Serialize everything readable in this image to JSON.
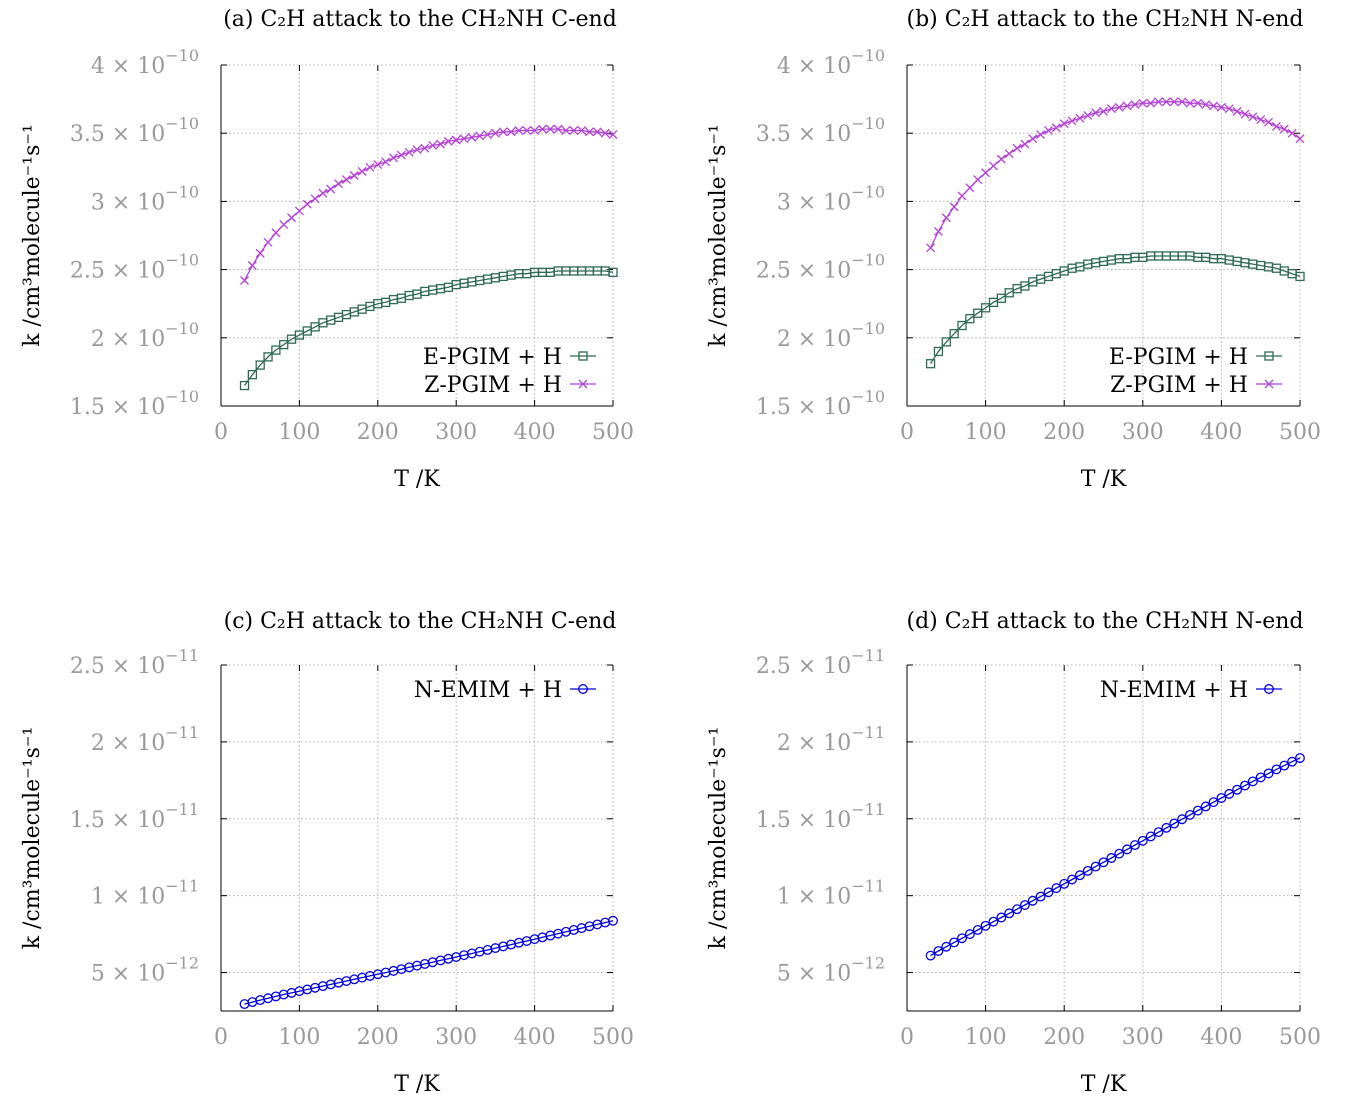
{
  "panels": [
    {
      "title": "(a) C₂H attack to the CH₂NH C-end",
      "xlabel": "T /K",
      "ylabel": "k /cm³molecule⁻¹s⁻¹",
      "xticks": [
        "0",
        "100",
        "200",
        "300",
        "400",
        "500"
      ],
      "yticks": [
        {
          "value": 1.5e-10,
          "mant": "1.5 × 10",
          "exp": "−10"
        },
        {
          "value": 2e-10,
          "mant": "2 × 10",
          "exp": "−10"
        },
        {
          "value": 2.5e-10,
          "mant": "2.5 × 10",
          "exp": "−10"
        },
        {
          "value": 3e-10,
          "mant": "3 × 10",
          "exp": "−10"
        },
        {
          "value": 3.5e-10,
          "mant": "3.5 × 10",
          "exp": "−10"
        },
        {
          "value": 4e-10,
          "mant": "4 × 10",
          "exp": "−10"
        }
      ]
    },
    {
      "title": "(b) C₂H attack to the CH₂NH N-end",
      "xlabel": "T /K",
      "ylabel": "k /cm³molecule⁻¹s⁻¹",
      "xticks": [
        "0",
        "100",
        "200",
        "300",
        "400",
        "500"
      ],
      "yticks": [
        {
          "value": 1.5e-10,
          "mant": "1.5 × 10",
          "exp": "−10"
        },
        {
          "value": 2e-10,
          "mant": "2 × 10",
          "exp": "−10"
        },
        {
          "value": 2.5e-10,
          "mant": "2.5 × 10",
          "exp": "−10"
        },
        {
          "value": 3e-10,
          "mant": "3 × 10",
          "exp": "−10"
        },
        {
          "value": 3.5e-10,
          "mant": "3.5 × 10",
          "exp": "−10"
        },
        {
          "value": 4e-10,
          "mant": "4 × 10",
          "exp": "−10"
        }
      ]
    },
    {
      "title": "(c) C₂H attack to the CH₂NH C-end",
      "xlabel": "T /K",
      "ylabel": "k /cm³molecule⁻¹s⁻¹",
      "xticks": [
        "0",
        "100",
        "200",
        "300",
        "400",
        "500"
      ],
      "yticks": [
        {
          "value": 5e-12,
          "mant": "5 × 10",
          "exp": "−12"
        },
        {
          "value": 1e-11,
          "mant": "1 × 10",
          "exp": "−11"
        },
        {
          "value": 1.5e-11,
          "mant": "1.5 × 10",
          "exp": "−11"
        },
        {
          "value": 2e-11,
          "mant": "2 × 10",
          "exp": "−11"
        },
        {
          "value": 2.5e-11,
          "mant": "2.5 × 10",
          "exp": "−11"
        }
      ]
    },
    {
      "title": "(d) C₂H attack to the CH₂NH N-end",
      "xlabel": "T /K",
      "ylabel": "k /cm³molecule⁻¹s⁻¹",
      "xticks": [
        "0",
        "100",
        "200",
        "300",
        "400",
        "500"
      ],
      "yticks": [
        {
          "value": 5e-12,
          "mant": "5 × 10",
          "exp": "−12"
        },
        {
          "value": 1e-11,
          "mant": "1 × 10",
          "exp": "−11"
        },
        {
          "value": 1.5e-11,
          "mant": "1.5 × 10",
          "exp": "−11"
        },
        {
          "value": 2e-11,
          "mant": "2 × 10",
          "exp": "−11"
        },
        {
          "value": 2.5e-11,
          "mant": "2.5 × 10",
          "exp": "−11"
        }
      ]
    }
  ],
  "colors": {
    "E": "#2e6b52",
    "Z": "#b341d6",
    "N": "#0000e0",
    "grid": "#b0b0b0",
    "tick": "#999999"
  },
  "chart_data": [
    {
      "type": "line",
      "title": "(a) C₂H attack to the CH₂NH C-end",
      "xlabel": "T /K",
      "ylabel": "k /cm³molecule⁻¹s⁻¹",
      "xlim": [
        0,
        500
      ],
      "ylim": [
        1.5e-10,
        4e-10
      ],
      "grid": true,
      "legend": "bottom-right",
      "x": [
        30,
        40,
        50,
        60,
        70,
        80,
        90,
        100,
        110,
        120,
        130,
        140,
        150,
        160,
        170,
        180,
        190,
        200,
        210,
        220,
        230,
        240,
        250,
        260,
        270,
        280,
        290,
        300,
        310,
        320,
        330,
        340,
        350,
        360,
        370,
        380,
        390,
        400,
        410,
        420,
        430,
        440,
        450,
        460,
        470,
        480,
        490,
        500
      ],
      "series": [
        {
          "name": "E-PGIM + H",
          "marker": "square",
          "values": [
            1.65e-10,
            1.73e-10,
            1.8e-10,
            1.86e-10,
            1.91e-10,
            1.95e-10,
            1.99e-10,
            2.02e-10,
            2.05e-10,
            2.08e-10,
            2.11e-10,
            2.13e-10,
            2.15e-10,
            2.17e-10,
            2.19e-10,
            2.21e-10,
            2.23e-10,
            2.25e-10,
            2.26e-10,
            2.28e-10,
            2.29e-10,
            2.31e-10,
            2.32e-10,
            2.34e-10,
            2.35e-10,
            2.36e-10,
            2.37e-10,
            2.39e-10,
            2.4e-10,
            2.41e-10,
            2.42e-10,
            2.43e-10,
            2.44e-10,
            2.45e-10,
            2.46e-10,
            2.47e-10,
            2.47e-10,
            2.48e-10,
            2.48e-10,
            2.48e-10,
            2.49e-10,
            2.49e-10,
            2.49e-10,
            2.49e-10,
            2.49e-10,
            2.49e-10,
            2.49e-10,
            2.48e-10
          ]
        },
        {
          "name": "Z-PGIM + H",
          "marker": "x",
          "values": [
            2.42e-10,
            2.53e-10,
            2.62e-10,
            2.7e-10,
            2.77e-10,
            2.83e-10,
            2.88e-10,
            2.93e-10,
            2.98e-10,
            3.02e-10,
            3.06e-10,
            3.09e-10,
            3.13e-10,
            3.16e-10,
            3.19e-10,
            3.22e-10,
            3.25e-10,
            3.27e-10,
            3.29e-10,
            3.32e-10,
            3.34e-10,
            3.36e-10,
            3.38e-10,
            3.39e-10,
            3.41e-10,
            3.42e-10,
            3.44e-10,
            3.45e-10,
            3.46e-10,
            3.47e-10,
            3.48e-10,
            3.49e-10,
            3.5e-10,
            3.51e-10,
            3.51e-10,
            3.52e-10,
            3.52e-10,
            3.52e-10,
            3.53e-10,
            3.53e-10,
            3.53e-10,
            3.52e-10,
            3.52e-10,
            3.52e-10,
            3.51e-10,
            3.51e-10,
            3.5e-10,
            3.49e-10
          ]
        }
      ]
    },
    {
      "type": "line",
      "title": "(b) C₂H attack to the CH₂NH N-end",
      "xlabel": "T /K",
      "ylabel": "k /cm³molecule⁻¹s⁻¹",
      "xlim": [
        0,
        500
      ],
      "ylim": [
        1.5e-10,
        4e-10
      ],
      "grid": true,
      "legend": "bottom-right",
      "x": [
        30,
        40,
        50,
        60,
        70,
        80,
        90,
        100,
        110,
        120,
        130,
        140,
        150,
        160,
        170,
        180,
        190,
        200,
        210,
        220,
        230,
        240,
        250,
        260,
        270,
        280,
        290,
        300,
        310,
        320,
        330,
        340,
        350,
        360,
        370,
        380,
        390,
        400,
        410,
        420,
        430,
        440,
        450,
        460,
        470,
        480,
        490,
        500
      ],
      "series": [
        {
          "name": "E-PGIM + H",
          "marker": "square",
          "values": [
            1.81e-10,
            1.9e-10,
            1.97e-10,
            2.03e-10,
            2.09e-10,
            2.14e-10,
            2.18e-10,
            2.22e-10,
            2.26e-10,
            2.29e-10,
            2.33e-10,
            2.36e-10,
            2.38e-10,
            2.41e-10,
            2.43e-10,
            2.45e-10,
            2.47e-10,
            2.49e-10,
            2.51e-10,
            2.52e-10,
            2.54e-10,
            2.55e-10,
            2.56e-10,
            2.57e-10,
            2.58e-10,
            2.58e-10,
            2.59e-10,
            2.59e-10,
            2.6e-10,
            2.6e-10,
            2.6e-10,
            2.6e-10,
            2.6e-10,
            2.6e-10,
            2.59e-10,
            2.59e-10,
            2.58e-10,
            2.58e-10,
            2.57e-10,
            2.56e-10,
            2.55e-10,
            2.54e-10,
            2.53e-10,
            2.52e-10,
            2.51e-10,
            2.49e-10,
            2.47e-10,
            2.45e-10
          ]
        },
        {
          "name": "Z-PGIM + H",
          "marker": "x",
          "values": [
            2.66e-10,
            2.78e-10,
            2.88e-10,
            2.96e-10,
            3.04e-10,
            3.1e-10,
            3.16e-10,
            3.21e-10,
            3.26e-10,
            3.31e-10,
            3.35e-10,
            3.39e-10,
            3.42e-10,
            3.46e-10,
            3.49e-10,
            3.52e-10,
            3.54e-10,
            3.57e-10,
            3.59e-10,
            3.61e-10,
            3.63e-10,
            3.65e-10,
            3.66e-10,
            3.68e-10,
            3.69e-10,
            3.7e-10,
            3.71e-10,
            3.72e-10,
            3.72e-10,
            3.73e-10,
            3.73e-10,
            3.73e-10,
            3.73e-10,
            3.72e-10,
            3.72e-10,
            3.71e-10,
            3.7e-10,
            3.69e-10,
            3.68e-10,
            3.66e-10,
            3.64e-10,
            3.62e-10,
            3.6e-10,
            3.58e-10,
            3.55e-10,
            3.53e-10,
            3.5e-10,
            3.46e-10
          ]
        }
      ]
    },
    {
      "type": "line",
      "title": "(c) C₂H attack to the CH₂NH C-end",
      "xlabel": "T /K",
      "ylabel": "k /cm³molecule⁻¹s⁻¹",
      "xlim": [
        0,
        500
      ],
      "ylim": [
        2.5e-12,
        2.5e-11
      ],
      "grid": true,
      "legend": "top-right",
      "x": [
        30,
        40,
        50,
        60,
        70,
        80,
        90,
        100,
        110,
        120,
        130,
        140,
        150,
        160,
        170,
        180,
        190,
        200,
        210,
        220,
        230,
        240,
        250,
        260,
        270,
        280,
        290,
        300,
        310,
        320,
        330,
        340,
        350,
        360,
        370,
        380,
        390,
        400,
        410,
        420,
        430,
        440,
        450,
        460,
        470,
        480,
        490,
        500
      ],
      "series": [
        {
          "name": "N-EMIM + H",
          "marker": "circle",
          "values": [
            2.95e-12,
            3.08e-12,
            3.21e-12,
            3.33e-12,
            3.45e-12,
            3.57e-12,
            3.68e-12,
            3.79e-12,
            3.9e-12,
            4.01e-12,
            4.12e-12,
            4.23e-12,
            4.34e-12,
            4.45e-12,
            4.56e-12,
            4.67e-12,
            4.78e-12,
            4.89e-12,
            5e-12,
            5.11e-12,
            5.22e-12,
            5.34e-12,
            5.45e-12,
            5.56e-12,
            5.67e-12,
            5.79e-12,
            5.9e-12,
            6.01e-12,
            6.13e-12,
            6.24e-12,
            6.36e-12,
            6.47e-12,
            6.59e-12,
            6.7e-12,
            6.82e-12,
            6.94e-12,
            7.05e-12,
            7.17e-12,
            7.29e-12,
            7.41e-12,
            7.53e-12,
            7.65e-12,
            7.77e-12,
            7.89e-12,
            8.01e-12,
            8.13e-12,
            8.25e-12,
            8.37e-12
          ]
        }
      ]
    },
    {
      "type": "line",
      "title": "(d) C₂H attack to the CH₂NH N-end",
      "xlabel": "T /K",
      "ylabel": "k /cm³molecule⁻¹s⁻¹",
      "xlim": [
        0,
        500
      ],
      "ylim": [
        2.5e-12,
        2.5e-11
      ],
      "grid": true,
      "legend": "top-right",
      "x": [
        30,
        40,
        50,
        60,
        70,
        80,
        90,
        100,
        110,
        120,
        130,
        140,
        150,
        160,
        170,
        180,
        190,
        200,
        210,
        220,
        230,
        240,
        250,
        260,
        270,
        280,
        290,
        300,
        310,
        320,
        330,
        340,
        350,
        360,
        370,
        380,
        390,
        400,
        410,
        420,
        430,
        440,
        450,
        460,
        470,
        480,
        490,
        500
      ],
      "series": [
        {
          "name": "N-EMIM + H",
          "marker": "circle",
          "values": [
            6.1e-12,
            6.4e-12,
            6.68e-12,
            6.96e-12,
            7.23e-12,
            7.5e-12,
            7.77e-12,
            8.04e-12,
            8.31e-12,
            8.58e-12,
            8.85e-12,
            9.12e-12,
            9.39e-12,
            9.67e-12,
            9.94e-12,
            1.022e-11,
            1.049e-11,
            1.077e-11,
            1.105e-11,
            1.133e-11,
            1.161e-11,
            1.189e-11,
            1.217e-11,
            1.245e-11,
            1.273e-11,
            1.301e-11,
            1.329e-11,
            1.357e-11,
            1.385e-11,
            1.413e-11,
            1.441e-11,
            1.469e-11,
            1.497e-11,
            1.525e-11,
            1.553e-11,
            1.58e-11,
            1.608e-11,
            1.635e-11,
            1.662e-11,
            1.689e-11,
            1.716e-11,
            1.743e-11,
            1.769e-11,
            1.795e-11,
            1.821e-11,
            1.846e-11,
            1.871e-11,
            1.895e-11
          ]
        }
      ]
    }
  ]
}
